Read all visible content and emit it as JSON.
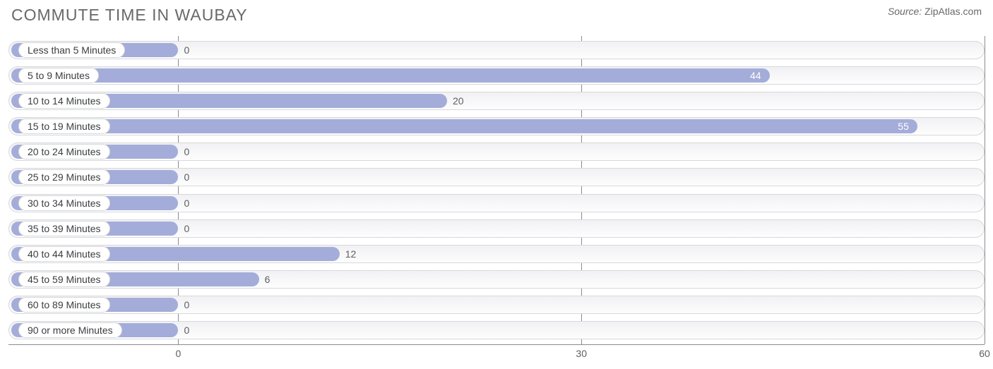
{
  "header": {
    "title": "COMMUTE TIME IN WAUBAY",
    "source_label": "Source:",
    "source_value": "ZipAtlas.com"
  },
  "chart": {
    "type": "bar-horizontal",
    "bar_color": "#a4add9",
    "track_border": "#d7d8db",
    "grid_color": "#8a8c8e",
    "text_color": "#3b3d3f",
    "value_text_outside": "#5c5e60",
    "value_text_inside": "#ffffff",
    "background_color": "#ffffff",
    "label_fontsize": 14,
    "title_fontsize": 23,
    "xlim": [
      0,
      60
    ],
    "xticks": [
      0,
      30,
      60
    ],
    "left_offset_pct": 17.4,
    "categories": [
      {
        "label": "Less than 5 Minutes",
        "value": 0
      },
      {
        "label": "5 to 9 Minutes",
        "value": 44
      },
      {
        "label": "10 to 14 Minutes",
        "value": 20
      },
      {
        "label": "15 to 19 Minutes",
        "value": 55
      },
      {
        "label": "20 to 24 Minutes",
        "value": 0
      },
      {
        "label": "25 to 29 Minutes",
        "value": 0
      },
      {
        "label": "30 to 34 Minutes",
        "value": 0
      },
      {
        "label": "35 to 39 Minutes",
        "value": 0
      },
      {
        "label": "40 to 44 Minutes",
        "value": 12
      },
      {
        "label": "45 to 59 Minutes",
        "value": 6
      },
      {
        "label": "60 to 89 Minutes",
        "value": 0
      },
      {
        "label": "90 or more Minutes",
        "value": 0
      }
    ]
  }
}
